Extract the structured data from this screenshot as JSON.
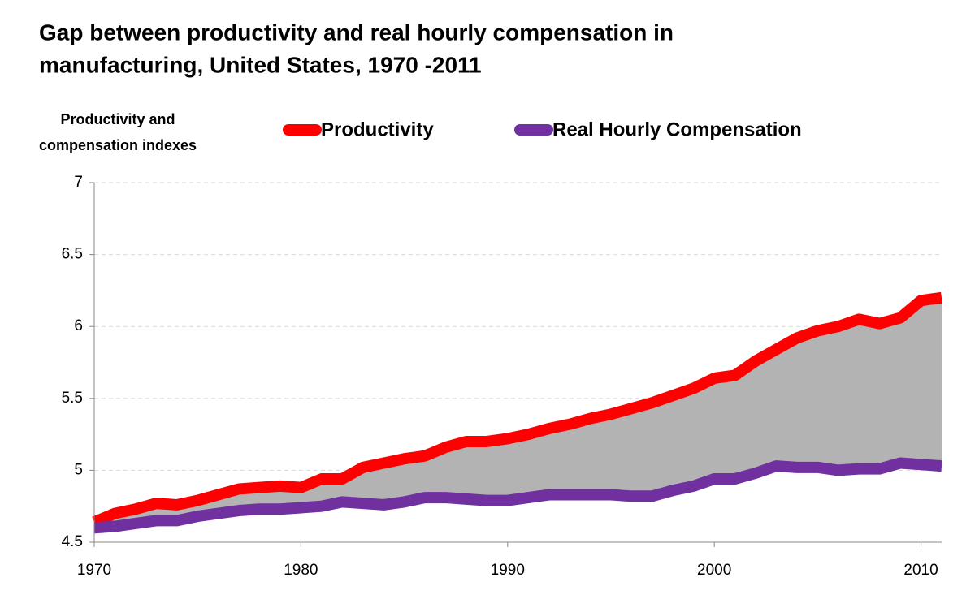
{
  "chart_data": {
    "type": "line",
    "title": [
      "Gap between productivity and real hourly compensation in",
      "manufacturing, United States, 1970 -2011"
    ],
    "y_label": [
      "Productivity and",
      "compensation indexes"
    ],
    "x": [
      1970,
      1971,
      1972,
      1973,
      1974,
      1975,
      1976,
      1977,
      1978,
      1979,
      1980,
      1981,
      1982,
      1983,
      1984,
      1985,
      1986,
      1987,
      1988,
      1989,
      1990,
      1991,
      1992,
      1993,
      1994,
      1995,
      1996,
      1997,
      1998,
      1999,
      2000,
      2001,
      2002,
      2003,
      2004,
      2005,
      2006,
      2007,
      2008,
      2009,
      2010,
      2011
    ],
    "series": [
      {
        "name": "Productivity",
        "color": "#ff0000",
        "values": [
          4.64,
          4.7,
          4.73,
          4.77,
          4.76,
          4.79,
          4.83,
          4.87,
          4.88,
          4.89,
          4.88,
          4.94,
          4.94,
          5.02,
          5.05,
          5.08,
          5.1,
          5.16,
          5.2,
          5.2,
          5.22,
          5.25,
          5.29,
          5.32,
          5.36,
          5.39,
          5.43,
          5.47,
          5.52,
          5.57,
          5.64,
          5.66,
          5.76,
          5.84,
          5.92,
          5.97,
          6.0,
          6.05,
          6.02,
          6.06,
          6.18,
          6.2
        ]
      },
      {
        "name": "Real Hourly Compensation",
        "color": "#7030a0",
        "values": [
          4.6,
          4.61,
          4.63,
          4.65,
          4.65,
          4.68,
          4.7,
          4.72,
          4.73,
          4.73,
          4.74,
          4.75,
          4.78,
          4.77,
          4.76,
          4.78,
          4.81,
          4.81,
          4.8,
          4.79,
          4.79,
          4.81,
          4.83,
          4.83,
          4.83,
          4.83,
          4.82,
          4.82,
          4.86,
          4.89,
          4.94,
          4.94,
          4.98,
          5.03,
          5.02,
          5.02,
          5.0,
          5.01,
          5.01,
          5.05,
          5.04,
          5.03
        ]
      }
    ],
    "fill_between": true,
    "fill_color": "#b3b3b3",
    "xlim": [
      1970,
      2011
    ],
    "xticks": [
      1970,
      1980,
      1990,
      2000,
      2010
    ],
    "ylim": [
      4.5,
      7
    ],
    "yticks": [
      4.5,
      5,
      5.5,
      6,
      6.5,
      7
    ],
    "grid": true
  }
}
